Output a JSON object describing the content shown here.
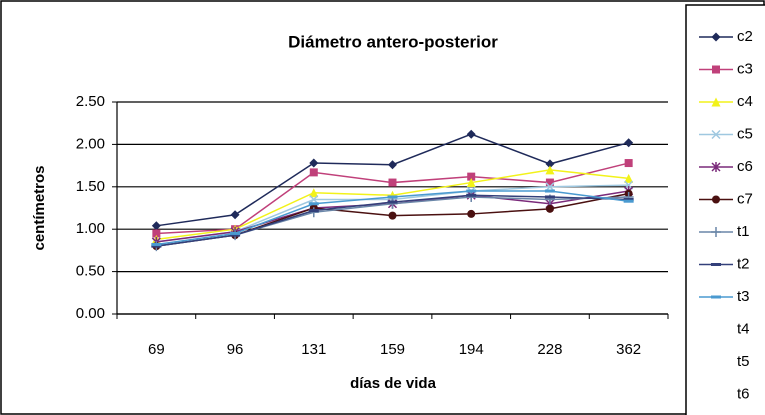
{
  "chart_data": {
    "type": "line",
    "title": "Diámetro antero-posterior",
    "x_label": "días de vida",
    "y_label": "centímetros",
    "categories": [
      "69",
      "96",
      "131",
      "159",
      "194",
      "228",
      "362"
    ],
    "ylim": [
      0,
      2.5
    ],
    "yticks": [
      {
        "value": 0,
        "label": "0.00"
      },
      {
        "value": 0.5,
        "label": "0.50"
      },
      {
        "value": 1,
        "label": "1.00"
      },
      {
        "value": 1.5,
        "label": "1.50"
      },
      {
        "value": 2,
        "label": "2.00"
      },
      {
        "value": 2.5,
        "label": "2.50"
      }
    ],
    "grid": true,
    "legend": "right",
    "series": [
      {
        "name": "c2",
        "color": "#1f2a5a",
        "marker": "diamond",
        "values": [
          1.04,
          1.17,
          1.78,
          1.76,
          2.12,
          1.77,
          2.02
        ]
      },
      {
        "name": "c3",
        "color": "#c0407a",
        "marker": "square",
        "values": [
          0.95,
          1.0,
          1.67,
          1.55,
          1.62,
          1.55,
          1.78
        ]
      },
      {
        "name": "c4",
        "color": "#f2f21a",
        "marker": "triangle",
        "values": [
          0.88,
          1.0,
          1.43,
          1.4,
          1.55,
          1.7,
          1.6
        ]
      },
      {
        "name": "c5",
        "color": "#9fc8e0",
        "marker": "x",
        "values": [
          0.85,
          0.97,
          1.35,
          1.35,
          1.45,
          1.5,
          1.52
        ]
      },
      {
        "name": "c6",
        "color": "#7a2a7a",
        "marker": "star",
        "values": [
          0.85,
          0.97,
          1.25,
          1.3,
          1.4,
          1.3,
          1.45
        ]
      },
      {
        "name": "c7",
        "color": "#4a1010",
        "marker": "circle",
        "values": [
          0.8,
          0.93,
          1.25,
          1.16,
          1.18,
          1.24,
          1.42
        ]
      },
      {
        "name": "t1",
        "color": "#6a86a8",
        "marker": "plus",
        "values": [
          0.8,
          0.93,
          1.2,
          1.3,
          1.38,
          1.35,
          1.38
        ]
      },
      {
        "name": "t2",
        "color": "#33407a",
        "marker": "dash",
        "values": [
          0.8,
          0.93,
          1.22,
          1.32,
          1.4,
          1.38,
          1.35
        ]
      },
      {
        "name": "t3",
        "color": "#4a9ad0",
        "marker": "dash",
        "values": [
          0.82,
          0.95,
          1.3,
          1.38,
          1.45,
          1.45,
          1.33
        ]
      },
      {
        "name": "t4",
        "color": "#ffffff",
        "marker": "none",
        "values": [
          null,
          null,
          null,
          null,
          null,
          null,
          null
        ]
      },
      {
        "name": "t5",
        "color": "#ffffff",
        "marker": "none",
        "values": [
          null,
          null,
          null,
          null,
          null,
          null,
          null
        ]
      },
      {
        "name": "t6",
        "color": "#ffffff",
        "marker": "none",
        "values": [
          null,
          null,
          null,
          null,
          null,
          null,
          null
        ]
      }
    ]
  }
}
